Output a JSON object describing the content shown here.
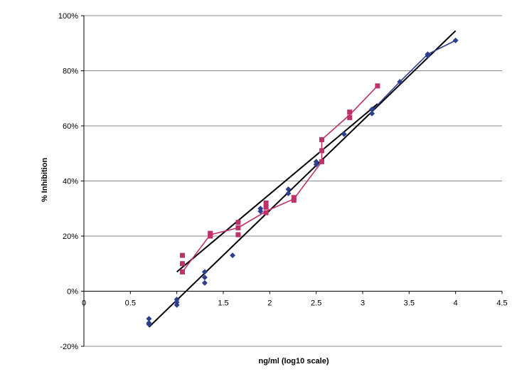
{
  "chart_data": {
    "type": "scatter",
    "title": "",
    "xlabel": "ng/ml (log10 scale)",
    "ylabel": "% Inhibition",
    "xlim": [
      0,
      4.5
    ],
    "ylim": [
      -20,
      100
    ],
    "x_ticks": [
      0,
      0.5,
      1,
      1.5,
      2,
      2.5,
      3,
      3.5,
      4,
      4.5
    ],
    "x_tick_labels": [
      "0",
      "0.5",
      "1",
      "1.5",
      "2",
      "2.5",
      "3",
      "3.5",
      "4",
      "4.5"
    ],
    "y_ticks": [
      -20,
      0,
      20,
      40,
      60,
      80,
      100
    ],
    "y_tick_labels": [
      "-20%",
      "0%",
      "20%",
      "40%",
      "60%",
      "80%",
      "100%"
    ],
    "grid": "horizontal",
    "legend": "none",
    "series": [
      {
        "marker": "diamond",
        "color": "#2e3f8f",
        "points": [
          [
            0.7,
            -10
          ],
          [
            0.7,
            -11.5
          ],
          [
            0.7,
            -12
          ],
          [
            1.0,
            -3
          ],
          [
            1.0,
            -4
          ],
          [
            1.0,
            -5
          ],
          [
            1.3,
            7
          ],
          [
            1.3,
            5
          ],
          [
            1.3,
            3
          ],
          [
            1.6,
            13
          ],
          [
            1.9,
            30
          ],
          [
            1.9,
            29
          ],
          [
            2.2,
            37
          ],
          [
            2.2,
            35.5
          ],
          [
            2.5,
            47
          ],
          [
            2.5,
            46
          ],
          [
            2.8,
            57
          ],
          [
            3.1,
            66
          ],
          [
            3.1,
            64.5
          ],
          [
            3.4,
            76
          ],
          [
            3.7,
            86
          ],
          [
            3.7,
            85.5
          ],
          [
            4.0,
            91
          ]
        ],
        "line": [
          [
            3.1,
            65.5
          ],
          [
            3.4,
            76
          ],
          [
            3.7,
            86
          ],
          [
            4.0,
            91
          ]
        ]
      },
      {
        "marker": "square",
        "color": "#c0306a",
        "points": [
          [
            1.06,
            13
          ],
          [
            1.06,
            10
          ],
          [
            1.06,
            7
          ],
          [
            1.36,
            21
          ],
          [
            1.36,
            20
          ],
          [
            1.66,
            25
          ],
          [
            1.66,
            23
          ],
          [
            1.66,
            20.5
          ],
          [
            1.96,
            32
          ],
          [
            1.96,
            30.5
          ],
          [
            1.96,
            28.5
          ],
          [
            2.26,
            34
          ],
          [
            2.26,
            33
          ],
          [
            2.56,
            55
          ],
          [
            2.56,
            51
          ],
          [
            2.56,
            47
          ],
          [
            2.86,
            65
          ],
          [
            2.86,
            63
          ],
          [
            3.16,
            74.5
          ]
        ],
        "line": [
          [
            1.06,
            7
          ],
          [
            1.36,
            20.5
          ],
          [
            1.66,
            23
          ],
          [
            1.96,
            29
          ],
          [
            2.26,
            33.5
          ],
          [
            2.56,
            47
          ],
          [
            2.56,
            55
          ],
          [
            2.86,
            64
          ],
          [
            3.16,
            74.5
          ]
        ]
      }
    ],
    "trendlines": [
      {
        "color": "#000000",
        "from": [
          1.0,
          7
        ],
        "to": [
          3.16,
          68
        ]
      },
      {
        "color": "#000000",
        "from": [
          0.7,
          -13
        ],
        "to": [
          4.0,
          94.5
        ]
      }
    ]
  }
}
